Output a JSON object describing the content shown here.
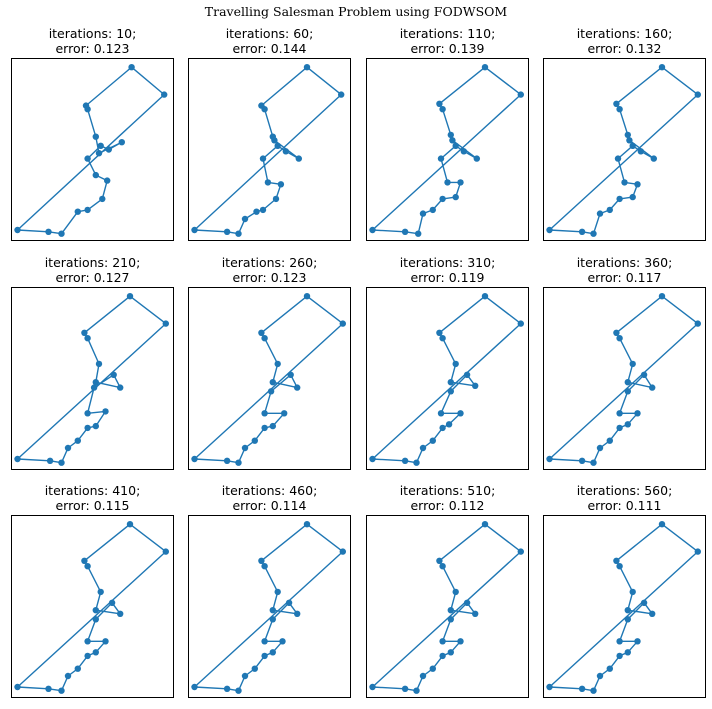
{
  "figure": {
    "title": "Travelling Salesman Problem using FODWSOM",
    "iterations_prefix": "iterations: ",
    "error_prefix": "error: "
  },
  "colors": {
    "route": "#1f77b4",
    "axes": "#000000"
  },
  "chart_data": [
    {
      "type": "line",
      "iterations": 10,
      "error": 0.123,
      "x": [
        0.04,
        0.23,
        0.31,
        0.41,
        0.47,
        0.56,
        0.59,
        0.52,
        0.47,
        0.55,
        0.6,
        0.68,
        0.54,
        0.52,
        0.47,
        0.46,
        0.74,
        0.94
      ],
      "y": [
        0.06,
        0.05,
        0.04,
        0.16,
        0.17,
        0.23,
        0.33,
        0.36,
        0.45,
        0.52,
        0.5,
        0.54,
        0.48,
        0.57,
        0.72,
        0.74,
        0.95,
        0.8
      ],
      "closed": true,
      "xlim": [
        0,
        1
      ],
      "ylim": [
        0,
        1
      ]
    },
    {
      "type": "line",
      "iterations": 60,
      "error": 0.144,
      "x": [
        0.04,
        0.24,
        0.31,
        0.35,
        0.42,
        0.46,
        0.54,
        0.57,
        0.49,
        0.46,
        0.55,
        0.6,
        0.68,
        0.53,
        0.52,
        0.47,
        0.45,
        0.73,
        0.94
      ],
      "y": [
        0.06,
        0.05,
        0.04,
        0.12,
        0.16,
        0.17,
        0.23,
        0.31,
        0.32,
        0.45,
        0.52,
        0.49,
        0.45,
        0.55,
        0.57,
        0.72,
        0.74,
        0.95,
        0.8
      ],
      "closed": true,
      "xlim": [
        0,
        1
      ],
      "ylim": [
        0,
        1
      ]
    },
    {
      "type": "line",
      "iterations": 110,
      "error": 0.139,
      "x": [
        0.04,
        0.24,
        0.32,
        0.35,
        0.41,
        0.47,
        0.55,
        0.58,
        0.5,
        0.46,
        0.55,
        0.6,
        0.68,
        0.53,
        0.52,
        0.47,
        0.45,
        0.73,
        0.95
      ],
      "y": [
        0.06,
        0.05,
        0.04,
        0.15,
        0.17,
        0.23,
        0.24,
        0.32,
        0.32,
        0.45,
        0.52,
        0.49,
        0.45,
        0.55,
        0.58,
        0.72,
        0.75,
        0.95,
        0.8
      ],
      "closed": true,
      "xlim": [
        0,
        1
      ],
      "ylim": [
        0,
        1
      ]
    },
    {
      "type": "line",
      "iterations": 160,
      "error": 0.132,
      "x": [
        0.04,
        0.24,
        0.31,
        0.35,
        0.41,
        0.47,
        0.55,
        0.58,
        0.5,
        0.46,
        0.55,
        0.6,
        0.68,
        0.53,
        0.52,
        0.47,
        0.45,
        0.73,
        0.95
      ],
      "y": [
        0.06,
        0.05,
        0.04,
        0.15,
        0.17,
        0.23,
        0.24,
        0.31,
        0.32,
        0.45,
        0.52,
        0.49,
        0.45,
        0.55,
        0.58,
        0.72,
        0.75,
        0.95,
        0.8
      ],
      "closed": true,
      "xlim": [
        0,
        1
      ],
      "ylim": [
        0,
        1
      ]
    },
    {
      "type": "line",
      "iterations": 210,
      "error": 0.127,
      "x": [
        0.04,
        0.24,
        0.31,
        0.35,
        0.41,
        0.47,
        0.52,
        0.58,
        0.47,
        0.51,
        0.63,
        0.67,
        0.52,
        0.54,
        0.47,
        0.45,
        0.73,
        0.95
      ],
      "y": [
        0.06,
        0.05,
        0.04,
        0.12,
        0.16,
        0.23,
        0.24,
        0.32,
        0.31,
        0.45,
        0.52,
        0.45,
        0.48,
        0.58,
        0.72,
        0.75,
        0.95,
        0.8
      ],
      "closed": true,
      "xlim": [
        0,
        1
      ],
      "ylim": [
        0,
        1
      ]
    },
    {
      "type": "line",
      "iterations": 260,
      "error": 0.123,
      "x": [
        0.04,
        0.24,
        0.31,
        0.35,
        0.41,
        0.47,
        0.52,
        0.59,
        0.47,
        0.51,
        0.63,
        0.67,
        0.52,
        0.55,
        0.47,
        0.45,
        0.73,
        0.95
      ],
      "y": [
        0.06,
        0.05,
        0.04,
        0.12,
        0.16,
        0.23,
        0.24,
        0.31,
        0.31,
        0.43,
        0.52,
        0.45,
        0.48,
        0.58,
        0.72,
        0.75,
        0.95,
        0.8
      ],
      "closed": true,
      "xlim": [
        0,
        1
      ],
      "ylim": [
        0,
        1
      ]
    },
    {
      "type": "line",
      "iterations": 310,
      "error": 0.119,
      "x": [
        0.04,
        0.24,
        0.31,
        0.35,
        0.41,
        0.47,
        0.51,
        0.58,
        0.46,
        0.52,
        0.62,
        0.67,
        0.52,
        0.55,
        0.47,
        0.45,
        0.73,
        0.95
      ],
      "y": [
        0.06,
        0.05,
        0.04,
        0.12,
        0.16,
        0.23,
        0.25,
        0.31,
        0.31,
        0.43,
        0.52,
        0.46,
        0.48,
        0.58,
        0.72,
        0.75,
        0.95,
        0.8
      ],
      "closed": true,
      "xlim": [
        0,
        1
      ],
      "ylim": [
        0,
        1
      ]
    },
    {
      "type": "line",
      "iterations": 360,
      "error": 0.117,
      "x": [
        0.04,
        0.24,
        0.31,
        0.35,
        0.41,
        0.47,
        0.52,
        0.58,
        0.47,
        0.52,
        0.62,
        0.67,
        0.52,
        0.55,
        0.47,
        0.45,
        0.73,
        0.95
      ],
      "y": [
        0.06,
        0.05,
        0.04,
        0.12,
        0.16,
        0.23,
        0.25,
        0.31,
        0.31,
        0.43,
        0.52,
        0.45,
        0.48,
        0.58,
        0.72,
        0.75,
        0.95,
        0.8
      ],
      "closed": true,
      "xlim": [
        0,
        1
      ],
      "ylim": [
        0,
        1
      ]
    },
    {
      "type": "line",
      "iterations": 410,
      "error": 0.115,
      "x": [
        0.04,
        0.23,
        0.31,
        0.35,
        0.41,
        0.47,
        0.52,
        0.58,
        0.47,
        0.52,
        0.62,
        0.67,
        0.52,
        0.55,
        0.47,
        0.45,
        0.73,
        0.95
      ],
      "y": [
        0.06,
        0.05,
        0.04,
        0.12,
        0.16,
        0.23,
        0.25,
        0.31,
        0.31,
        0.43,
        0.52,
        0.46,
        0.48,
        0.58,
        0.72,
        0.75,
        0.95,
        0.8
      ],
      "closed": true,
      "xlim": [
        0,
        1
      ],
      "ylim": [
        0,
        1
      ]
    },
    {
      "type": "line",
      "iterations": 460,
      "error": 0.114,
      "x": [
        0.04,
        0.24,
        0.31,
        0.35,
        0.41,
        0.47,
        0.52,
        0.58,
        0.47,
        0.52,
        0.62,
        0.67,
        0.52,
        0.55,
        0.47,
        0.45,
        0.73,
        0.95
      ],
      "y": [
        0.06,
        0.05,
        0.04,
        0.12,
        0.16,
        0.23,
        0.25,
        0.31,
        0.31,
        0.43,
        0.52,
        0.46,
        0.48,
        0.58,
        0.72,
        0.75,
        0.95,
        0.8
      ],
      "closed": true,
      "xlim": [
        0,
        1
      ],
      "ylim": [
        0,
        1
      ]
    },
    {
      "type": "line",
      "iterations": 510,
      "error": 0.112,
      "x": [
        0.04,
        0.24,
        0.31,
        0.35,
        0.41,
        0.47,
        0.52,
        0.58,
        0.47,
        0.52,
        0.62,
        0.67,
        0.52,
        0.55,
        0.47,
        0.45,
        0.73,
        0.95
      ],
      "y": [
        0.06,
        0.05,
        0.04,
        0.12,
        0.16,
        0.23,
        0.25,
        0.31,
        0.31,
        0.43,
        0.52,
        0.46,
        0.48,
        0.58,
        0.72,
        0.75,
        0.95,
        0.8
      ],
      "closed": true,
      "xlim": [
        0,
        1
      ],
      "ylim": [
        0,
        1
      ]
    },
    {
      "type": "line",
      "iterations": 560,
      "error": 0.111,
      "x": [
        0.04,
        0.24,
        0.31,
        0.35,
        0.41,
        0.47,
        0.52,
        0.58,
        0.47,
        0.52,
        0.62,
        0.67,
        0.52,
        0.55,
        0.47,
        0.45,
        0.73,
        0.95
      ],
      "y": [
        0.06,
        0.05,
        0.04,
        0.12,
        0.16,
        0.23,
        0.25,
        0.31,
        0.31,
        0.43,
        0.52,
        0.46,
        0.48,
        0.58,
        0.72,
        0.75,
        0.95,
        0.8
      ],
      "closed": true,
      "xlim": [
        0,
        1
      ],
      "ylim": [
        0,
        1
      ]
    }
  ]
}
